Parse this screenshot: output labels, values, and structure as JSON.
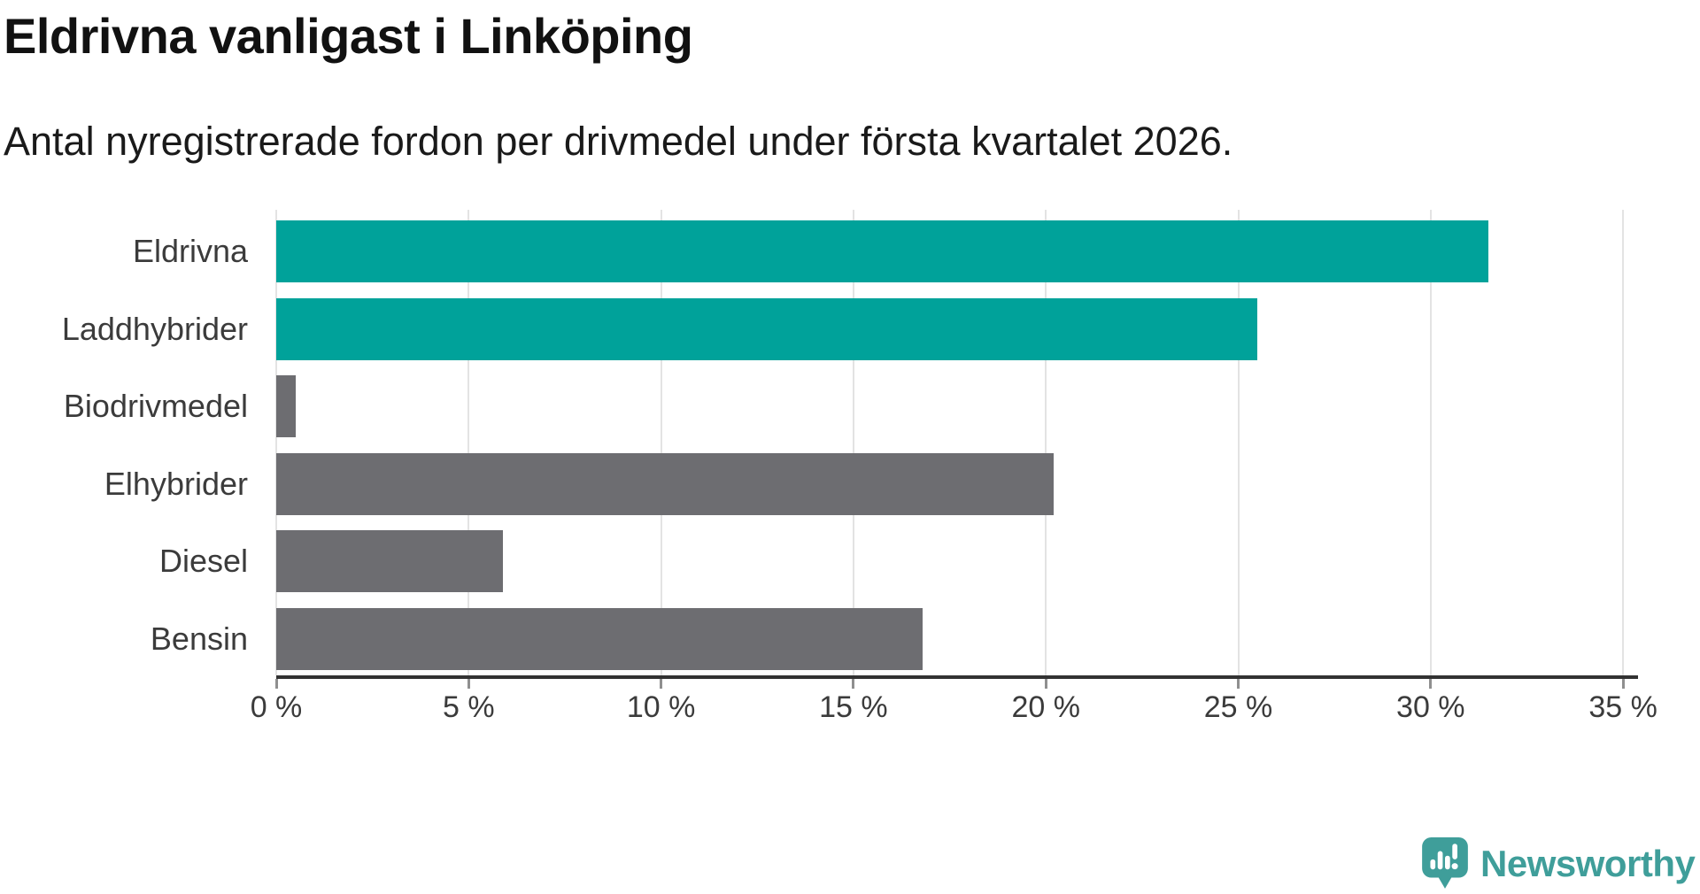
{
  "title": "Eldrivna vanligast i Linköping",
  "subtitle": "Antal nyregistrerade fordon per drivmedel under första kvartalet 2026.",
  "chart_data": {
    "type": "bar",
    "orientation": "horizontal",
    "title": "Eldrivna vanligast i Linköping",
    "subtitle": "Antal nyregistrerade fordon per drivmedel under första kvartalet 2026.",
    "categories": [
      "Eldrivna",
      "Laddhybrider",
      "Biodrivmedel",
      "Elhybrider",
      "Diesel",
      "Bensin"
    ],
    "values": [
      31.5,
      25.5,
      0.5,
      20.2,
      5.9,
      16.8
    ],
    "unit": "%",
    "xlim": [
      0,
      35.4
    ],
    "xticks": [
      0,
      5,
      10,
      15,
      20,
      25,
      30,
      35
    ],
    "xtick_suffix": " %",
    "grid": true,
    "legend": false,
    "bar_colors": [
      "#00a29a",
      "#00a29a",
      "#6d6d71",
      "#6d6d71",
      "#6d6d71",
      "#6d6d71"
    ],
    "highlight_color": "#00a29a",
    "base_color": "#6d6d71",
    "gridline_color": "#e3e3e3",
    "axis_line_color": "#323232",
    "text_color": "#3b3b3b"
  },
  "branding": {
    "logo_text": "Newsworthy",
    "logo_color": "#3f9e9a",
    "logo_icon": "speech-bubble-bar-chart-exclamation"
  }
}
